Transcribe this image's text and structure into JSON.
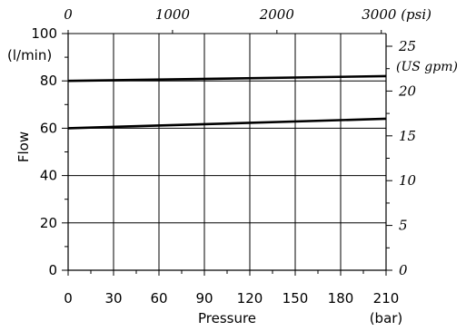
{
  "chart_data": {
    "type": "line",
    "title": "",
    "xlabel": "Pressure",
    "xunit": "(bar)",
    "ylabel": "Flow",
    "yunit": "(l/min)",
    "x_ticks": [
      "0",
      "30",
      "60",
      "90",
      "120",
      "150",
      "180",
      "210"
    ],
    "y_ticks": [
      "0",
      "20",
      "40",
      "60",
      "80",
      "100"
    ],
    "xlim": [
      0,
      210
    ],
    "ylim": [
      0,
      100
    ],
    "grid": true,
    "secondary_x": {
      "ticks": [
        "0",
        "1000",
        "2000",
        "3000 (psi)"
      ],
      "values": [
        0,
        1000,
        2000,
        3000
      ],
      "unit": "psi",
      "bar_per_unit": 0.0689476
    },
    "secondary_y": {
      "ticks": [
        "0",
        "5",
        "10",
        "15",
        "20",
        "25"
      ],
      "values": [
        0,
        5,
        10,
        15,
        20,
        25
      ],
      "unit_label": "(US gpm)",
      "lpm_per_unit": 3.78541
    },
    "series": [
      {
        "x": [
          0,
          210
        ],
        "y": [
          80,
          82
        ]
      },
      {
        "x": [
          0,
          210
        ],
        "y": [
          60,
          64
        ]
      }
    ]
  }
}
